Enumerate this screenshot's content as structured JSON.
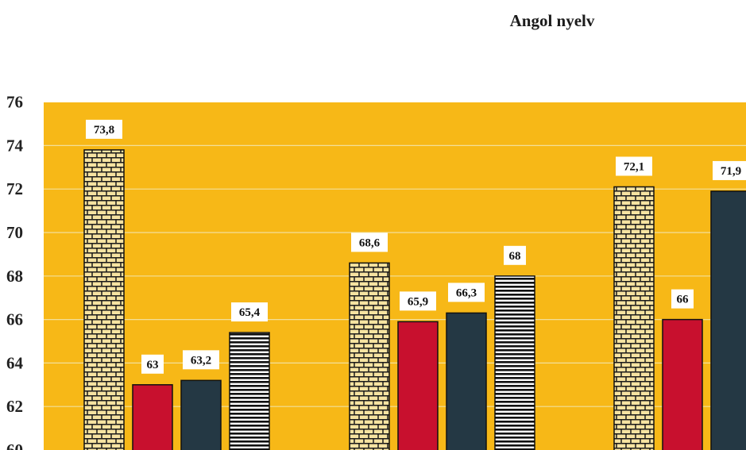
{
  "chart_data": {
    "type": "bar",
    "title": "Angol nyelv",
    "xlabel": "",
    "ylabel": "",
    "ylim": [
      60,
      76
    ],
    "yticks": [
      "60",
      "62",
      "64",
      "66",
      "68",
      "70",
      "72",
      "74",
      "76"
    ],
    "grid": true,
    "legend": "none",
    "categories": [
      "",
      "",
      ""
    ],
    "series": [
      {
        "values": [
          73.8,
          68.6,
          72.1
        ],
        "labels": [
          "73,8",
          "68,6",
          "72,1"
        ],
        "pattern": "brick",
        "color": "#f6e3a1"
      },
      {
        "values": [
          63,
          65.9,
          66
        ],
        "labels": [
          "63",
          "65,9",
          "66"
        ],
        "pattern": "solid",
        "color": "#c8102e"
      },
      {
        "values": [
          63.2,
          66.3,
          71.9
        ],
        "labels": [
          "63,2",
          "66,3",
          "71,9"
        ],
        "pattern": "solid",
        "color": "#243844"
      },
      {
        "values": [
          65.4,
          68,
          null
        ],
        "labels": [
          "65,4",
          "68",
          ""
        ],
        "pattern": "hstripe",
        "color": "#111111"
      }
    ],
    "colors": {
      "plot_background": "#f7b817",
      "gridline": "#f2df9a"
    }
  }
}
